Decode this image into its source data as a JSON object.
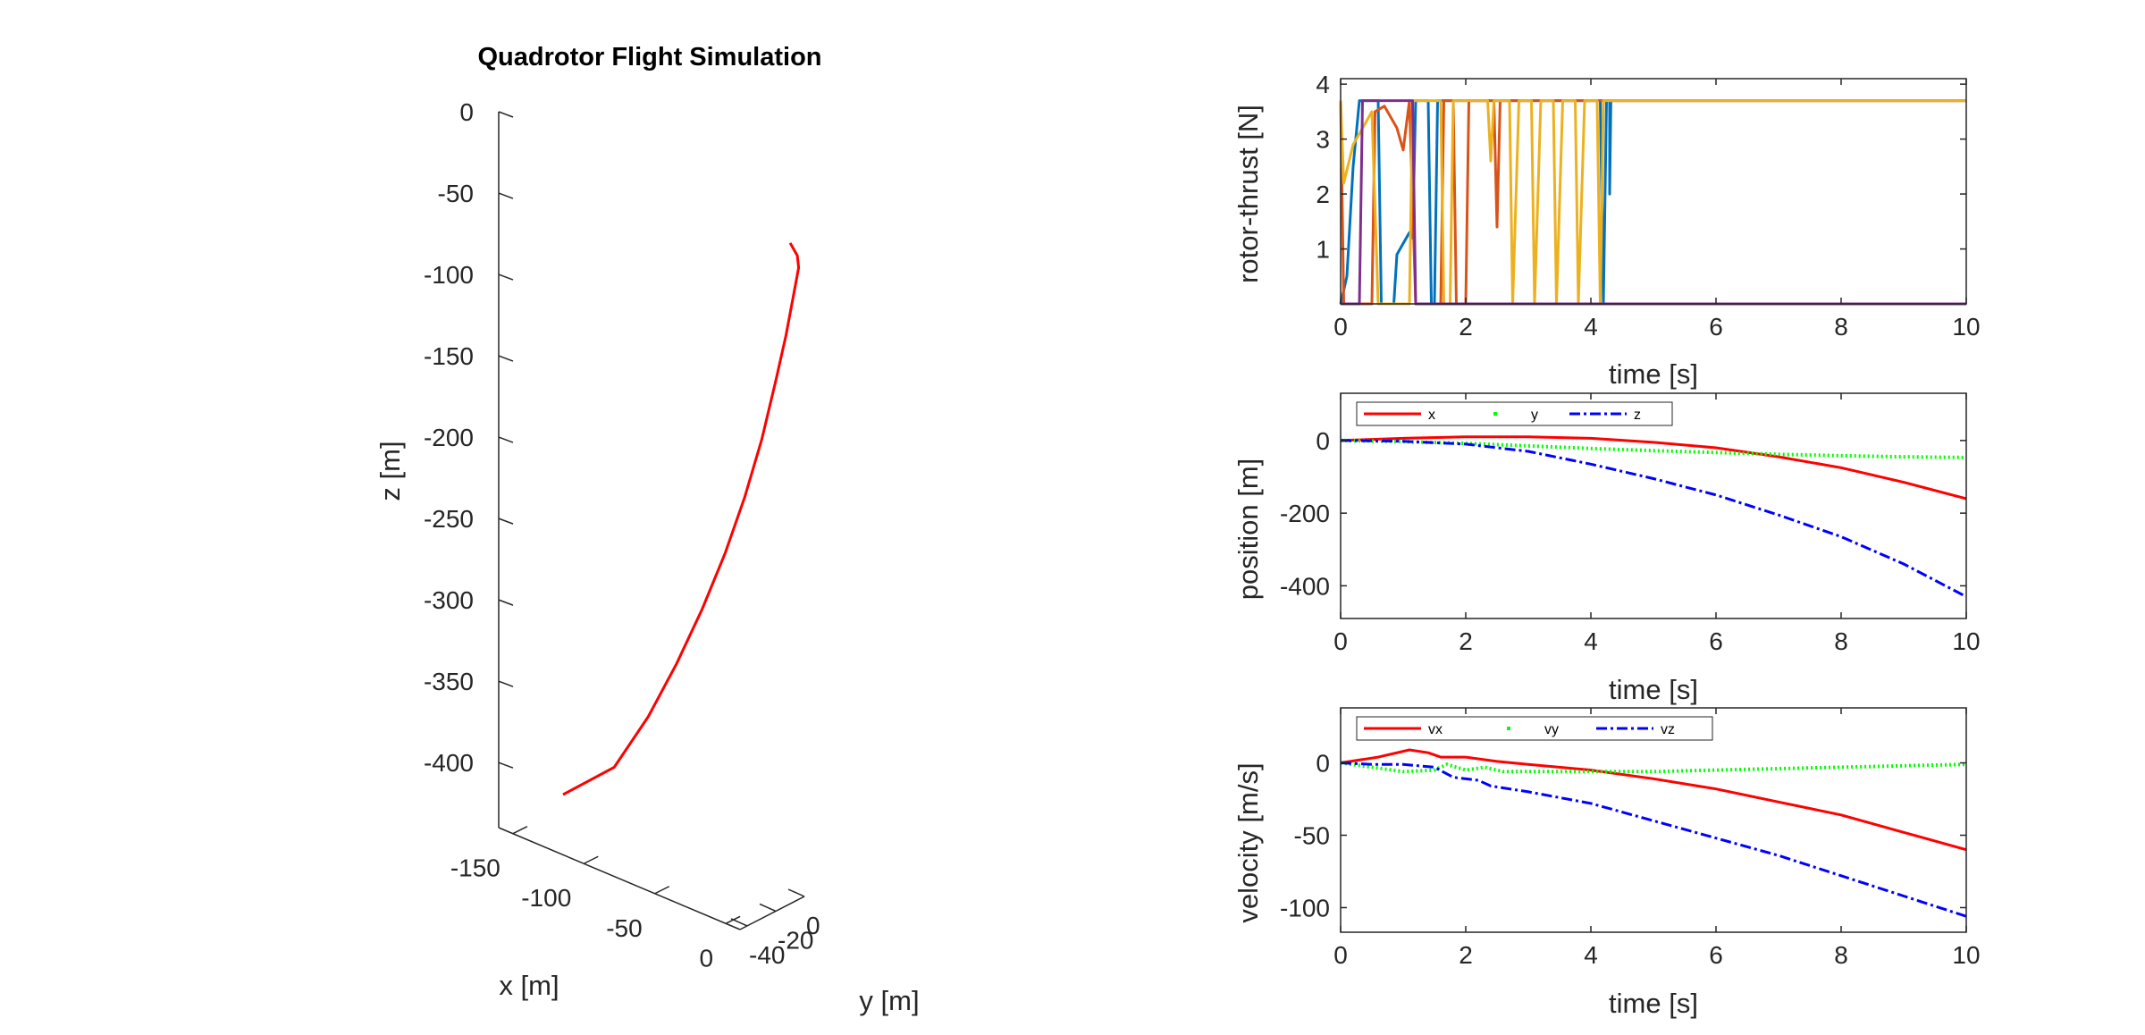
{
  "chart_data": [
    {
      "type": "line",
      "subtype": "3d-trajectory",
      "title": "Quadrotor Flight Simulation",
      "xlabel": "x [m]",
      "ylabel": "y [m]",
      "zlabel": "z [m]",
      "xlim": [
        -160,
        10
      ],
      "ylim": [
        -45,
        0
      ],
      "zlim": [
        -440,
        0
      ],
      "xticks": [
        "-150",
        "-100",
        "-50",
        "0"
      ],
      "yticks": [
        "-40",
        "-20",
        "0"
      ],
      "zticks": [
        "0",
        "-50",
        "-100",
        "-150",
        "-200",
        "-250",
        "-300",
        "-350",
        "-400"
      ],
      "series": [
        {
          "color": "#ff0000",
          "trajectory_xz": [
            [
              0,
              -42
            ],
            [
              5,
              -48
            ],
            [
              6,
              -55
            ],
            [
              3,
              -70
            ],
            [
              -3,
              -100
            ],
            [
              -10,
              -130
            ],
            [
              -20,
              -170
            ],
            [
              -32,
              -210
            ],
            [
              -46,
              -250
            ],
            [
              -62,
              -290
            ],
            [
              -80,
              -330
            ],
            [
              -100,
              -370
            ],
            [
              -124,
              -410
            ],
            [
              -160,
              -440
            ]
          ]
        }
      ]
    },
    {
      "type": "line",
      "title": "",
      "xlabel": "time [s]",
      "ylabel": "rotor-thrust [N]",
      "xlim": [
        0,
        10
      ],
      "ylim": [
        0,
        4.1
      ],
      "xticks": [
        "0",
        "2",
        "4",
        "6",
        "8",
        "10"
      ],
      "yticks": [
        "1",
        "2",
        "3",
        "4"
      ],
      "series": [
        {
          "color": "#0072bd",
          "points": [
            [
              0,
              0
            ],
            [
              0.1,
              0.5
            ],
            [
              0.2,
              2.5
            ],
            [
              0.3,
              3.7
            ],
            [
              0.6,
              3.7
            ],
            [
              0.65,
              0
            ],
            [
              0.85,
              0
            ],
            [
              0.9,
              0.9
            ],
            [
              1.0,
              1.1
            ],
            [
              1.1,
              1.3
            ],
            [
              1.15,
              1.2
            ],
            [
              1.2,
              3.7
            ],
            [
              1.4,
              3.7
            ],
            [
              1.45,
              0
            ],
            [
              1.5,
              0
            ],
            [
              1.55,
              3.7
            ],
            [
              4.15,
              3.7
            ],
            [
              4.2,
              0
            ],
            [
              4.25,
              3.7
            ],
            [
              4.3,
              3.7
            ],
            [
              4.3,
              2.0
            ],
            [
              4.32,
              3.7
            ],
            [
              10,
              3.7
            ]
          ]
        },
        {
          "color": "#d95319",
          "points": [
            [
              0,
              3.7
            ],
            [
              0.05,
              0
            ],
            [
              0.5,
              0
            ],
            [
              0.55,
              3.5
            ],
            [
              0.7,
              3.6
            ],
            [
              0.9,
              3.2
            ],
            [
              1.0,
              2.8
            ],
            [
              1.1,
              3.7
            ],
            [
              1.2,
              0
            ],
            [
              1.6,
              0
            ],
            [
              1.65,
              3.7
            ],
            [
              1.8,
              3.7
            ],
            [
              1.85,
              0
            ],
            [
              2.0,
              0
            ],
            [
              2.05,
              3.7
            ],
            [
              2.45,
              3.7
            ],
            [
              2.5,
              1.4
            ],
            [
              2.55,
              3.7
            ],
            [
              10,
              3.7
            ]
          ]
        },
        {
          "color": "#edb120",
          "points": [
            [
              0,
              3.7
            ],
            [
              0.05,
              2.2
            ],
            [
              0.2,
              2.9
            ],
            [
              0.4,
              3.3
            ],
            [
              0.5,
              3.5
            ],
            [
              0.6,
              0
            ],
            [
              1.1,
              0
            ],
            [
              1.15,
              3.7
            ],
            [
              1.6,
              3.7
            ],
            [
              1.65,
              0
            ],
            [
              1.75,
              0
            ],
            [
              1.8,
              3.7
            ],
            [
              2.35,
              3.7
            ],
            [
              2.4,
              2.6
            ],
            [
              2.45,
              3.7
            ],
            [
              2.7,
              3.7
            ],
            [
              2.75,
              0
            ],
            [
              2.85,
              3.7
            ],
            [
              3.05,
              3.7
            ],
            [
              3.1,
              0
            ],
            [
              3.2,
              3.7
            ],
            [
              3.4,
              3.7
            ],
            [
              3.45,
              0
            ],
            [
              3.55,
              3.7
            ],
            [
              3.75,
              3.7
            ],
            [
              3.8,
              0
            ],
            [
              3.9,
              3.7
            ],
            [
              4.1,
              3.7
            ],
            [
              4.15,
              0
            ],
            [
              4.2,
              3.7
            ],
            [
              10,
              3.7
            ]
          ]
        },
        {
          "color": "#7e2f8e",
          "points": [
            [
              0,
              0
            ],
            [
              0.3,
              0
            ],
            [
              0.35,
              3.7
            ],
            [
              1.15,
              3.7
            ],
            [
              1.2,
              0
            ],
            [
              10,
              0
            ]
          ]
        }
      ]
    },
    {
      "type": "line",
      "title": "",
      "xlabel": "time [s]",
      "ylabel": "position [m]",
      "xlim": [
        0,
        10
      ],
      "ylim": [
        -490,
        130
      ],
      "xticks": [
        "0",
        "2",
        "4",
        "6",
        "8",
        "10"
      ],
      "yticks": [
        "0",
        "-200",
        "-400"
      ],
      "legend": {
        "placement": "top-left",
        "orientation": "horizontal"
      },
      "series": [
        {
          "name": "x",
          "color": "#ff0000",
          "style": "solid",
          "points": [
            [
              0,
              0
            ],
            [
              1,
              6
            ],
            [
              2,
              10
            ],
            [
              3,
              10
            ],
            [
              4,
              6
            ],
            [
              5,
              -5
            ],
            [
              6,
              -20
            ],
            [
              7,
              -45
            ],
            [
              8,
              -75
            ],
            [
              9,
              -115
            ],
            [
              10,
              -160
            ]
          ]
        },
        {
          "name": "y",
          "color": "#00ff00",
          "style": "dotted",
          "points": [
            [
              0,
              0
            ],
            [
              1,
              -3
            ],
            [
              2,
              -8
            ],
            [
              3,
              -15
            ],
            [
              4,
              -22
            ],
            [
              5,
              -28
            ],
            [
              6,
              -33
            ],
            [
              7,
              -38
            ],
            [
              8,
              -42
            ],
            [
              9,
              -45
            ],
            [
              10,
              -47
            ]
          ]
        },
        {
          "name": "z",
          "color": "#0000ff",
          "style": "dashdot",
          "points": [
            [
              0,
              0
            ],
            [
              1,
              -2
            ],
            [
              2,
              -10
            ],
            [
              3,
              -30
            ],
            [
              4,
              -65
            ],
            [
              5,
              -105
            ],
            [
              6,
              -150
            ],
            [
              7,
              -205
            ],
            [
              8,
              -265
            ],
            [
              9,
              -340
            ],
            [
              10,
              -430
            ]
          ]
        }
      ]
    },
    {
      "type": "line",
      "title": "",
      "xlabel": "time [s]",
      "ylabel": "velocity [m/s]",
      "xlim": [
        0,
        10
      ],
      "ylim": [
        -117,
        38
      ],
      "xticks": [
        "0",
        "2",
        "4",
        "6",
        "8",
        "10"
      ],
      "yticks": [
        "0",
        "-50",
        "-100"
      ],
      "legend": {
        "placement": "top-left",
        "orientation": "horizontal"
      },
      "series": [
        {
          "name": "vx",
          "color": "#ff0000",
          "style": "solid",
          "points": [
            [
              0,
              0
            ],
            [
              0.6,
              4
            ],
            [
              1.1,
              9
            ],
            [
              1.4,
              7
            ],
            [
              1.6,
              4
            ],
            [
              2,
              4
            ],
            [
              2.5,
              1
            ],
            [
              3,
              -1
            ],
            [
              4,
              -5
            ],
            [
              5,
              -11
            ],
            [
              6,
              -18
            ],
            [
              7,
              -27
            ],
            [
              8,
              -36
            ],
            [
              9,
              -48
            ],
            [
              10,
              -60
            ]
          ]
        },
        {
          "name": "vy",
          "color": "#00ff00",
          "style": "dotted",
          "points": [
            [
              0,
              0
            ],
            [
              0.5,
              -3
            ],
            [
              1,
              -6
            ],
            [
              1.5,
              -5
            ],
            [
              1.7,
              -1
            ],
            [
              2,
              -5
            ],
            [
              2.3,
              -3
            ],
            [
              2.6,
              -6
            ],
            [
              3,
              -6
            ],
            [
              4,
              -6
            ],
            [
              5,
              -6
            ],
            [
              6,
              -5
            ],
            [
              7,
              -4
            ],
            [
              8,
              -3
            ],
            [
              9,
              -2
            ],
            [
              10,
              -1
            ]
          ]
        },
        {
          "name": "vz",
          "color": "#0000ff",
          "style": "dashdot",
          "points": [
            [
              0,
              0
            ],
            [
              0.5,
              -1
            ],
            [
              1,
              -1
            ],
            [
              1.5,
              -3
            ],
            [
              1.8,
              -10
            ],
            [
              2.2,
              -12
            ],
            [
              2.4,
              -16
            ],
            [
              3,
              -20
            ],
            [
              4,
              -28
            ],
            [
              5,
              -40
            ],
            [
              6,
              -52
            ],
            [
              7,
              -64
            ],
            [
              8,
              -78
            ],
            [
              9,
              -92
            ],
            [
              10,
              -106
            ]
          ]
        }
      ]
    }
  ]
}
